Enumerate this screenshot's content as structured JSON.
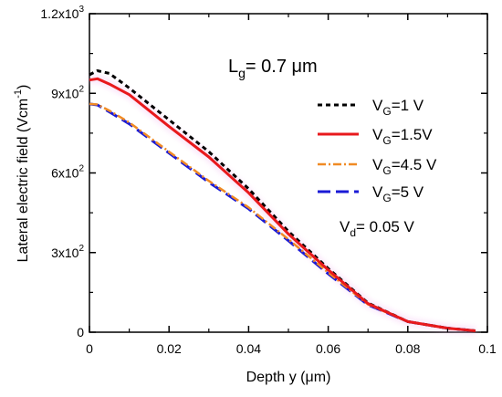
{
  "chart_data": {
    "type": "line",
    "xlabel_main": "Depth y (",
    "xlabel_unit": "μm",
    "xlabel_close": ")",
    "ylabel_main": "Lateral electric field (Vcm",
    "ylabel_exp": "-1",
    "ylabel_close": ")",
    "xlim": [
      0,
      0.1
    ],
    "ylim": [
      0,
      1200
    ],
    "grid": false,
    "legend_position": "right",
    "x_ticks": [
      {
        "value": 0,
        "label": "0"
      },
      {
        "value": 0.02,
        "label": "0.02"
      },
      {
        "value": 0.04,
        "label": "0.04"
      },
      {
        "value": 0.06,
        "label": "0.06"
      },
      {
        "value": 0.08,
        "label": "0.08"
      },
      {
        "value": 0.1,
        "label": "0.1"
      }
    ],
    "y_ticks": [
      {
        "value": 0,
        "base": "0",
        "exp": ""
      },
      {
        "value": 300,
        "base": "3x10",
        "exp": "2"
      },
      {
        "value": 600,
        "base": "6x10",
        "exp": "2"
      },
      {
        "value": 900,
        "base": "9x10",
        "exp": "2"
      },
      {
        "value": 1200,
        "base": "1.2x10",
        "exp": "3"
      }
    ],
    "annotations": {
      "lg": {
        "main": "L",
        "sub": "g",
        "rest": "= 0.7 ",
        "unit": "μm"
      },
      "vd": {
        "main": "V",
        "sub": "d",
        "rest": "= 0.05 V"
      }
    },
    "series": [
      {
        "label_main": "V",
        "label_sub": "G",
        "label_rest": "=1 V",
        "color": "#000000",
        "dash": "5,4",
        "width": 3,
        "x": [
          0,
          0.002,
          0.005,
          0.01,
          0.02,
          0.03,
          0.04,
          0.05,
          0.06,
          0.07,
          0.08,
          0.09,
          0.097
        ],
        "y": [
          970,
          985,
          975,
          920,
          800,
          680,
          540,
          380,
          240,
          110,
          40,
          15,
          5
        ]
      },
      {
        "label_main": "V",
        "label_sub": "G",
        "label_rest": "=1.5V",
        "color": "#e8191c",
        "dash": "",
        "width": 3,
        "x": [
          0,
          0.002,
          0.005,
          0.01,
          0.02,
          0.03,
          0.04,
          0.05,
          0.06,
          0.07,
          0.08,
          0.09,
          0.097
        ],
        "y": [
          950,
          955,
          935,
          895,
          775,
          660,
          525,
          370,
          235,
          108,
          40,
          15,
          5
        ]
      },
      {
        "label_main": "V",
        "label_sub": "G",
        "label_rest": "=4.5 V",
        "color": "#f08a24",
        "dash": "9,3,2,3",
        "width": 2.5,
        "x": [
          0,
          0.002,
          0.005,
          0.01,
          0.02,
          0.03,
          0.04,
          0.05,
          0.06,
          0.07,
          0.08,
          0.09,
          0.097
        ],
        "y": [
          860,
          858,
          835,
          790,
          680,
          570,
          470,
          350,
          225,
          105,
          40,
          15,
          5
        ]
      },
      {
        "label_main": "V",
        "label_sub": "G",
        "label_rest": "=5 V",
        "color": "#1a1ad6",
        "dash": "14,6",
        "width": 3,
        "x": [
          0,
          0.002,
          0.005,
          0.01,
          0.02,
          0.03,
          0.04,
          0.05,
          0.06,
          0.07,
          0.08,
          0.09,
          0.097
        ],
        "y": [
          860,
          856,
          830,
          785,
          675,
          565,
          465,
          345,
          220,
          103,
          40,
          15,
          5
        ]
      }
    ]
  }
}
